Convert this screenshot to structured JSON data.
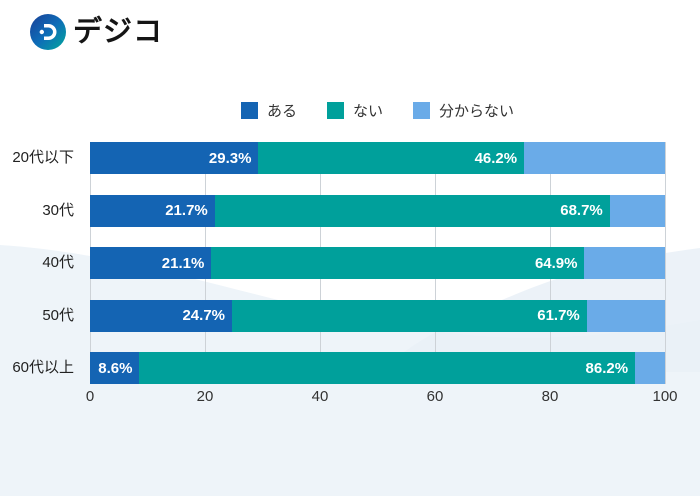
{
  "brand": {
    "name": "デジコ"
  },
  "colors": {
    "accent_blue": "#1464b3",
    "accent_teal": "#00a09b",
    "accent_light_blue": "#6aabe8",
    "gridline": "#cdd2d7",
    "wave_light": "#eef4f9",
    "wave_lighter": "#e9f0f7",
    "text_dark": "#222222"
  },
  "chart_data": {
    "type": "bar",
    "orientation": "horizontal-stacked",
    "title": "",
    "categories": [
      "20代以下",
      "30代",
      "40代",
      "50代",
      "60代以上"
    ],
    "series": [
      {
        "name": "ある",
        "color": "#1464b3",
        "values": [
          29.3,
          21.7,
          21.1,
          24.7,
          8.6
        ],
        "labels_visible": true
      },
      {
        "name": "ない",
        "color": "#00a09b",
        "values": [
          46.2,
          68.7,
          64.9,
          61.7,
          86.2
        ],
        "labels_visible": true
      },
      {
        "name": "分からない",
        "color": "#6aabe8",
        "values": [
          24.5,
          9.6,
          14.0,
          13.6,
          5.2
        ],
        "labels_visible": false
      }
    ],
    "value_suffix": "%",
    "xlim": [
      0,
      100
    ],
    "xticks": [
      0,
      20,
      40,
      60,
      80,
      100
    ],
    "legend_position": "top-center",
    "grid": "vertical"
  }
}
